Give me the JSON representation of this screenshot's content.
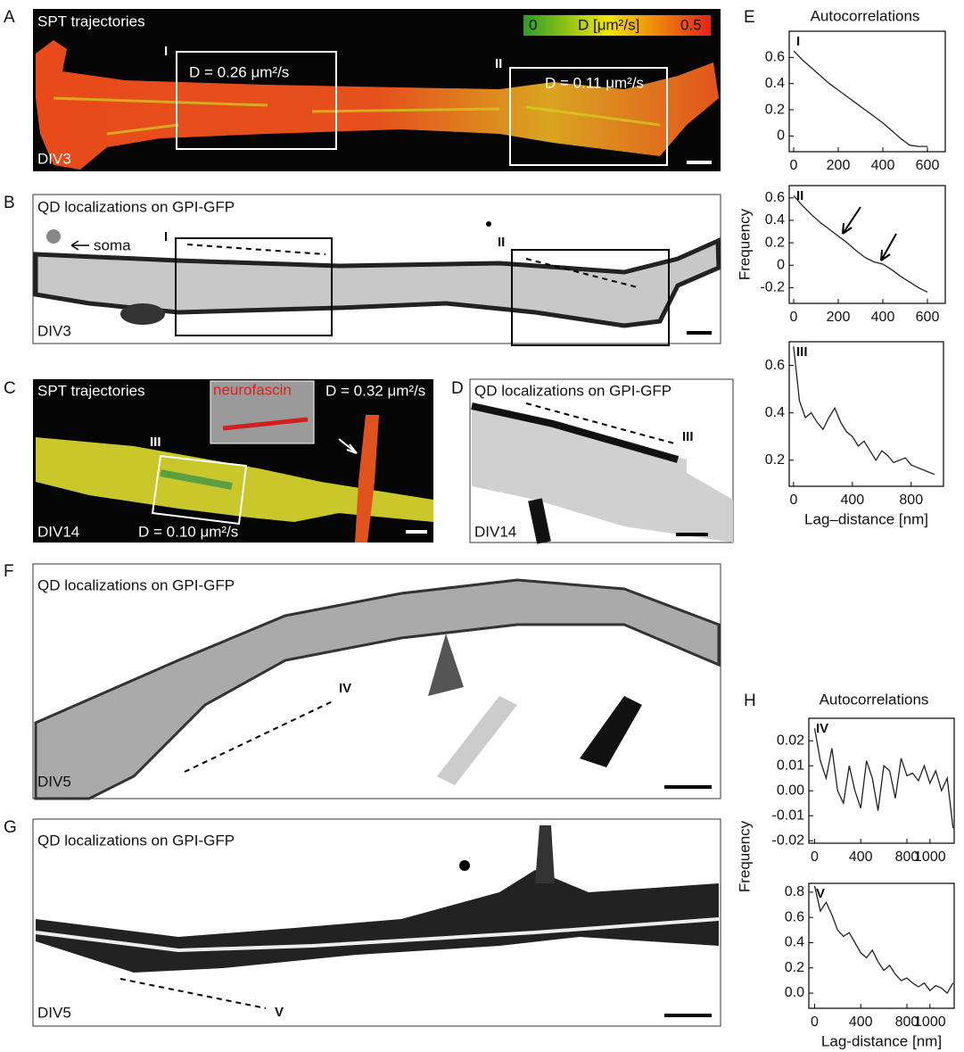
{
  "panels": {
    "A": {
      "letter": "A",
      "title": "SPT trajectories",
      "colorbar_min": "0",
      "colorbar_label": "D [μm²/s]",
      "colorbar_max": "0.5",
      "roi_1": "I",
      "roi_1_value": "D = 0.26 μm²/s",
      "roi_2": "II",
      "roi_2_value": "D = 0.11 μm²/s",
      "condition": "DIV3"
    },
    "B": {
      "letter": "B",
      "title": "QD localizations on GPI-GFP",
      "soma": "soma",
      "roi_1": "I",
      "roi_2": "II",
      "condition": "DIV3"
    },
    "C": {
      "letter": "C",
      "title": "SPT trajectories",
      "inset": "neurofascin",
      "value_1": "D = 0.32 μm²/s",
      "roi": "III",
      "value_2": "D = 0.10 μm²/s",
      "condition": "DIV14"
    },
    "D": {
      "letter": "D",
      "title": "QD localizations on GPI-GFP",
      "roi": "III",
      "condition": "DIV14"
    },
    "E": {
      "letter": "E",
      "title": "Autocorrelations"
    },
    "F": {
      "letter": "F",
      "title": "QD localizations on GPI-GFP",
      "roi": "IV",
      "condition": "DIV5"
    },
    "G": {
      "letter": "G",
      "title": "QD localizations on GPI-GFP",
      "roi": "V",
      "condition": "DIV5"
    },
    "H": {
      "letter": "H",
      "title": "Autocorrelations"
    }
  },
  "chart_data": [
    {
      "type": "line",
      "label": "I",
      "color": "#222",
      "x": [
        0,
        40,
        80,
        120,
        160,
        200,
        240,
        280,
        320,
        360,
        400,
        440,
        480,
        520,
        560,
        600
      ],
      "values": [
        0.65,
        0.58,
        0.52,
        0.46,
        0.4,
        0.35,
        0.3,
        0.25,
        0.2,
        0.15,
        0.1,
        0.04,
        -0.02,
        -0.07,
        -0.08,
        -0.08
      ],
      "xlim": [
        -20,
        680
      ],
      "ylim": [
        -0.12,
        0.8
      ],
      "xticks": [
        0,
        200,
        400,
        600
      ],
      "yticks": [
        0,
        0.2,
        0.4,
        0.6
      ]
    },
    {
      "type": "line",
      "label": "II",
      "color": "#222",
      "ylabel": "Frequency",
      "x": [
        0,
        40,
        80,
        120,
        160,
        200,
        240,
        280,
        320,
        360,
        400,
        440,
        480,
        520,
        560,
        600
      ],
      "values": [
        0.62,
        0.53,
        0.45,
        0.38,
        0.32,
        0.26,
        0.2,
        0.13,
        0.07,
        0.03,
        0.01,
        -0.04,
        -0.1,
        -0.15,
        -0.2,
        -0.24
      ],
      "xlim": [
        -20,
        680
      ],
      "ylim": [
        -0.34,
        0.71
      ],
      "xticks": [
        0,
        200,
        400,
        600
      ],
      "yticks": [
        -0.2,
        0,
        0.2,
        0.4,
        0.6
      ]
    },
    {
      "type": "line",
      "label": "III",
      "color": "#222",
      "xlabel": "Lag–distance [nm]",
      "x": [
        0,
        40,
        80,
        120,
        160,
        200,
        240,
        280,
        320,
        360,
        400,
        440,
        480,
        520,
        560,
        600,
        640,
        680,
        720,
        760,
        800,
        840,
        880,
        920,
        960
      ],
      "values": [
        0.68,
        0.45,
        0.38,
        0.4,
        0.36,
        0.33,
        0.38,
        0.42,
        0.36,
        0.32,
        0.3,
        0.26,
        0.28,
        0.24,
        0.2,
        0.24,
        0.22,
        0.19,
        0.2,
        0.21,
        0.18,
        0.17,
        0.16,
        0.15,
        0.14
      ],
      "xlim": [
        -30,
        1020
      ],
      "ylim": [
        0.09,
        0.7
      ],
      "xticks": [
        0,
        400,
        800
      ],
      "yticks": [
        0.2,
        0.4,
        0.6
      ]
    },
    {
      "type": "line",
      "label": "IV",
      "color": "#222",
      "x": [
        0,
        50,
        100,
        150,
        200,
        250,
        300,
        350,
        400,
        450,
        500,
        550,
        600,
        650,
        700,
        750,
        800,
        850,
        900,
        950,
        1000,
        1050,
        1100,
        1150,
        1200
      ],
      "values": [
        0.025,
        0.012,
        0.005,
        0.017,
        0.0,
        -0.005,
        0.01,
        0.0,
        -0.007,
        0.012,
        0.005,
        -0.008,
        0.01,
        0.008,
        -0.003,
        0.013,
        0.006,
        0.007,
        0.004,
        0.01,
        0.003,
        0.008,
        0.0,
        0.005,
        -0.015
      ],
      "xlim": [
        -50,
        1210
      ],
      "ylim": [
        -0.021,
        0.029
      ],
      "xticks": [
        0,
        400,
        800,
        1000
      ],
      "yticks": [
        -0.02,
        -0.01,
        {
          "value": 0,
          "label": "0.00"
        },
        0.01,
        0.02
      ]
    },
    {
      "type": "line",
      "label": "V",
      "color": "#222",
      "ylabel": "Frequency",
      "xlabel": "Lag-distance [nm]",
      "x": [
        0,
        50,
        100,
        150,
        200,
        250,
        300,
        350,
        400,
        450,
        500,
        550,
        600,
        650,
        700,
        750,
        800,
        850,
        900,
        950,
        1000,
        1050,
        1100,
        1150,
        1200
      ],
      "values": [
        0.85,
        0.65,
        0.72,
        0.62,
        0.5,
        0.45,
        0.48,
        0.4,
        0.32,
        0.28,
        0.34,
        0.25,
        0.18,
        0.22,
        0.15,
        0.1,
        0.12,
        0.08,
        0.05,
        0.08,
        0.02,
        0.06,
        0.04,
        0.0,
        0.08
      ],
      "xlim": [
        -50,
        1210
      ],
      "ylim": [
        -0.12,
        0.87
      ],
      "xticks": [
        0,
        400,
        800,
        1000
      ],
      "yticks": [
        {
          "value": 0,
          "label": "0.0"
        },
        0.2,
        0.4,
        0.6,
        0.8
      ]
    }
  ]
}
